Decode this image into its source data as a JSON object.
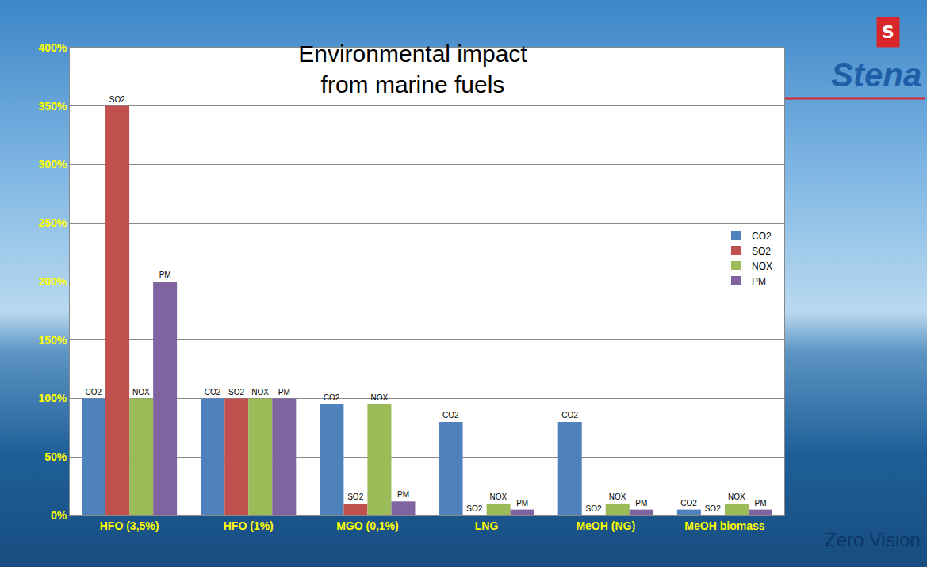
{
  "chart_data": {
    "type": "bar",
    "title": "Environmental impact\nfrom marine fuels",
    "categories": [
      "HFO (3,5%)",
      "HFO (1%)",
      "MGO (0,1%)",
      "LNG",
      "MeOH (NG)",
      "MeOH biomass"
    ],
    "series": [
      {
        "name": "CO2",
        "color": "#4f81bd",
        "values": [
          100,
          100,
          95,
          80,
          80,
          5
        ]
      },
      {
        "name": "SO2",
        "color": "#c0504d",
        "values": [
          350,
          100,
          10,
          0,
          0,
          0
        ]
      },
      {
        "name": "NOX",
        "color": "#9bbb59",
        "values": [
          100,
          100,
          95,
          10,
          10,
          10
        ]
      },
      {
        "name": "PM",
        "color": "#8064a2",
        "values": [
          200,
          100,
          12,
          5,
          5,
          5
        ]
      }
    ],
    "ylim": [
      0,
      400
    ],
    "yticks": [
      {
        "value": 0,
        "label": "0%"
      },
      {
        "value": 50,
        "label": "50%"
      },
      {
        "value": 100,
        "label": "100%"
      },
      {
        "value": 150,
        "label": "150%"
      },
      {
        "value": 200,
        "label": "200%"
      },
      {
        "value": 250,
        "label": "250%"
      },
      {
        "value": 300,
        "label": "300%"
      },
      {
        "value": 350,
        "label": "350%"
      },
      {
        "value": 400,
        "label": "400%"
      }
    ],
    "grid": true,
    "legend": "right",
    "annotations": [
      {
        "text": "S"
      },
      {
        "text": "Stena"
      },
      {
        "text": "Zero Vision"
      }
    ]
  }
}
